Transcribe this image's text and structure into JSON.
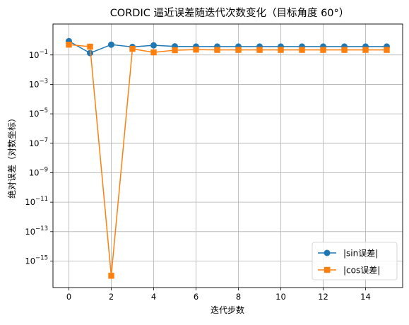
{
  "chart_data": {
    "type": "line",
    "title": "CORDIC 逼近误差随迭代次数变化（目标角度 60°）",
    "xlabel": "迭代步数",
    "ylabel": "绝对误差（对数坐标）",
    "yscale": "log",
    "xlim": [
      -0.75,
      15.75
    ],
    "ylim_exp": [
      -16.8,
      1.1
    ],
    "xticks": [
      0,
      2,
      4,
      6,
      8,
      10,
      12,
      14
    ],
    "yticks_exp": [
      -15,
      -13,
      -11,
      -9,
      -7,
      -5,
      -3,
      -1
    ],
    "grid": true,
    "legend_position": "lower-right",
    "x": [
      0,
      1,
      2,
      3,
      4,
      5,
      6,
      7,
      8,
      9,
      10,
      11,
      12,
      13,
      14,
      15
    ],
    "series": [
      {
        "name": "|sin误差|",
        "color": "#1f77b4",
        "marker": "circle",
        "values": [
          0.866,
          0.134,
          0.5,
          0.35,
          0.45,
          0.38,
          0.37,
          0.37,
          0.37,
          0.37,
          0.37,
          0.37,
          0.37,
          0.37,
          0.37,
          0.37
        ]
      },
      {
        "name": "|cos误差|",
        "color": "#ff7f0e",
        "marker": "square",
        "values": [
          0.5,
          0.366,
          1e-16,
          0.26,
          0.15,
          0.21,
          0.23,
          0.22,
          0.22,
          0.22,
          0.22,
          0.22,
          0.22,
          0.22,
          0.22,
          0.22
        ]
      }
    ]
  }
}
